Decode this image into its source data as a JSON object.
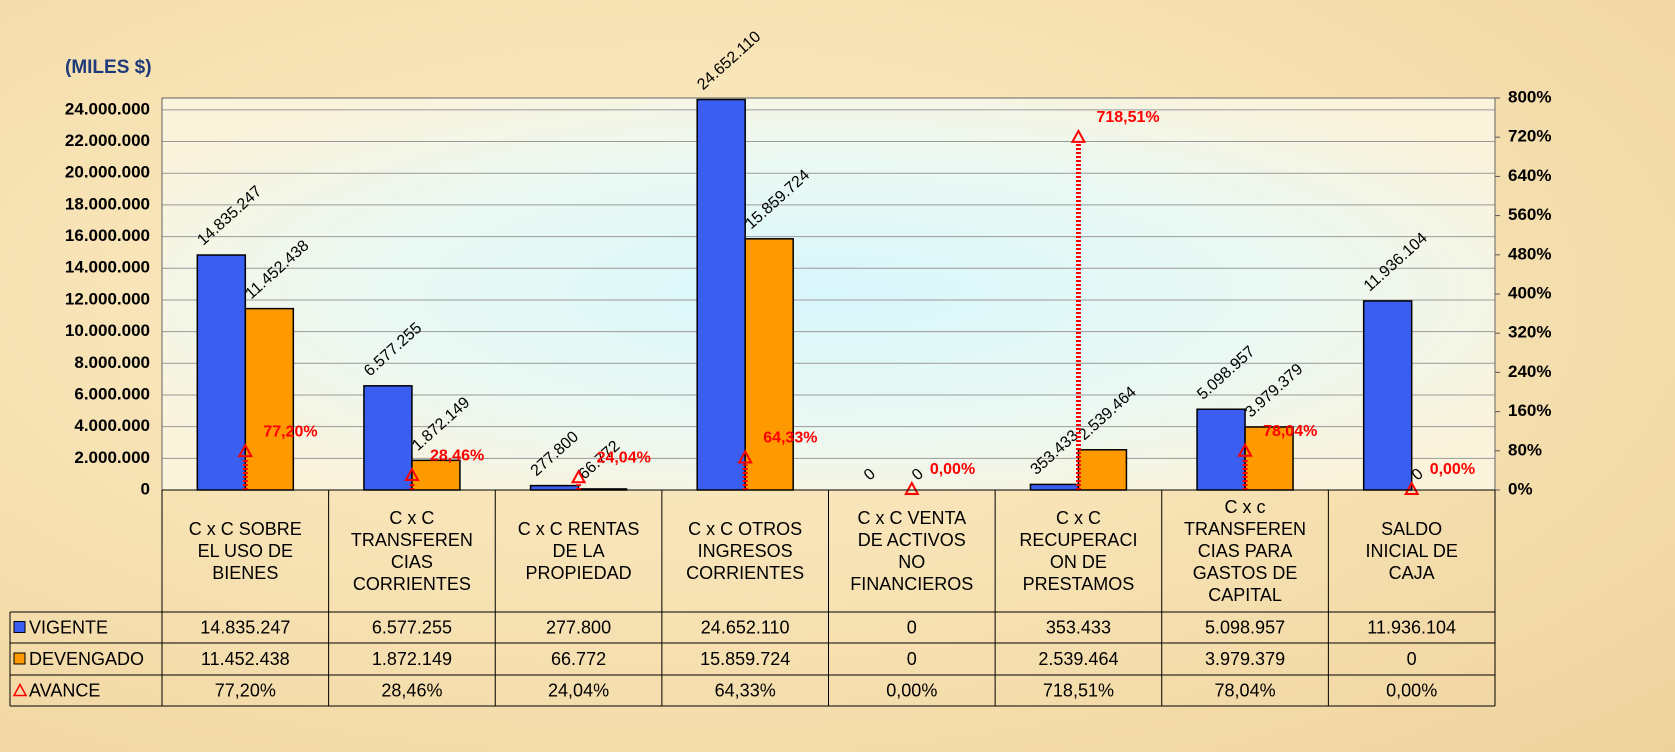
{
  "chart_data": {
    "type": "bar",
    "title": "(MILES $)",
    "categories": [
      "C x C SOBRE\nEL USO DE\nBIENES",
      "C x C\nTRANSFEREN\nCIAS\nCORRIENTES",
      "C x C RENTAS\nDE LA\nPROPIEDAD",
      "C x C OTROS\nINGRESOS\nCORRIENTES",
      "C x C VENTA\nDE ACTIVOS\nNO\nFINANCIEROS",
      "C x C\nRECUPERACI\nON DE\nPRESTAMOS",
      "C x c\nTRANSFEREN\nCIAS PARA\nGASTOS DE\nCAPITAL",
      "SALDO\nINICIAL DE\nCAJA"
    ],
    "series": [
      {
        "name": "VIGENTE",
        "color": "#3a5ef0",
        "values": [
          14835247,
          6577255,
          277800,
          24652110,
          0,
          353433,
          5098957,
          11936104
        ],
        "value_labels": [
          "14.835.247",
          "6.577.255",
          "277.800",
          "24.652.110",
          "0",
          "353.433",
          "5.098.957",
          "11.936.104"
        ]
      },
      {
        "name": "DEVENGADO",
        "color": "#ff9900",
        "values": [
          11452438,
          1872149,
          66772,
          15859724,
          0,
          2539464,
          3979379,
          0
        ],
        "value_labels": [
          "11.452.438",
          "1.872.149",
          "66.772",
          "15.859.724",
          "0",
          "2.539.464",
          "3.979.379",
          "0"
        ]
      },
      {
        "name": "AVANCE",
        "color": "#ff0000",
        "axis": "y2",
        "marker": "triangle",
        "values": [
          77.2,
          28.46,
          24.04,
          64.33,
          0,
          718.51,
          78.04,
          0
        ],
        "value_labels": [
          "77,20%",
          "28,46%",
          "24,04%",
          "64,33%",
          "0,00%",
          "718,51%",
          "78,04%",
          "0,00%"
        ]
      }
    ],
    "ylim": [
      0,
      24750000
    ],
    "yticks": [
      0,
      {
        "value": 2000000,
        "label": "2.000.000"
      },
      {
        "value": 4000000,
        "label": "4.000.000"
      },
      {
        "value": 6000000,
        "label": "6.000.000"
      },
      {
        "value": 8000000,
        "label": "8.000.000"
      },
      {
        "value": 10000000,
        "label": "10.000.000"
      },
      {
        "value": 12000000,
        "label": "12.000.000"
      },
      {
        "value": 14000000,
        "label": "14.000.000"
      },
      {
        "value": 16000000,
        "label": "16.000.000"
      },
      {
        "value": 18000000,
        "label": "18.000.000"
      },
      {
        "value": 20000000,
        "label": "20.000.000"
      },
      {
        "value": 22000000,
        "label": "22.000.000"
      },
      {
        "value": 24000000,
        "label": "24.000.000"
      }
    ],
    "y2lim": [
      0,
      800
    ],
    "y2ticks": [
      {
        "value": 0,
        "label": "0%"
      },
      {
        "value": 80,
        "label": "80%"
      },
      {
        "value": 160,
        "label": "160%"
      },
      {
        "value": 240,
        "label": "240%"
      },
      {
        "value": 320,
        "label": "320%"
      },
      {
        "value": 400,
        "label": "400%"
      },
      {
        "value": 480,
        "label": "480%"
      },
      {
        "value": 560,
        "label": "560%"
      },
      {
        "value": 640,
        "label": "640%"
      },
      {
        "value": 720,
        "label": "720%"
      },
      {
        "value": 800,
        "label": "800%"
      }
    ],
    "grid": true
  }
}
